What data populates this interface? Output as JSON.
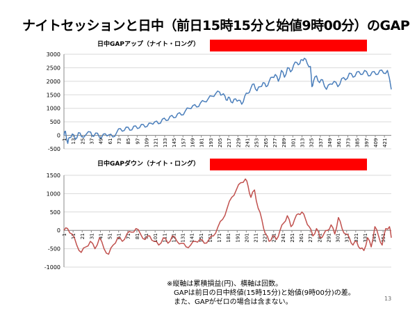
{
  "page": {
    "title": "ナイトセッションと日中（前日15時15分と始値9時00分）のGAP",
    "page_number": "13",
    "notes": [
      "※縦軸は累積損益(円)、横軸は回数。",
      "GAPは前日の日中終値(15時15分)と始値(9時00分)の差。",
      "また、GAPがゼロの場合は含まない。"
    ]
  },
  "colors": {
    "highlight_bar": "#ff0000",
    "up_line": "#4a7ebb",
    "down_line": "#c0504d",
    "grid": "#d9d9d9"
  },
  "chart_data": [
    {
      "type": "line",
      "title": "日中GAPアップ（ナイト・ロング）",
      "ylim": [
        -500,
        3000
      ],
      "yticks": [
        -500,
        0,
        500,
        1000,
        1500,
        2000,
        2500,
        3000
      ],
      "xlim": [
        1,
        430
      ],
      "xticks": [
        1,
        13,
        25,
        37,
        49,
        61,
        73,
        85,
        97,
        109,
        121,
        133,
        145,
        157,
        169,
        181,
        193,
        205,
        217,
        229,
        241,
        253,
        265,
        277,
        289,
        301,
        313,
        325,
        337,
        349,
        361,
        373,
        385,
        397,
        409,
        421
      ],
      "grid": true,
      "series": [
        {
          "x": [
            1,
            3,
            6,
            8,
            12,
            16,
            20,
            24,
            30,
            36,
            40,
            45,
            50,
            55,
            60,
            65,
            70,
            75,
            80,
            85,
            90,
            95,
            100,
            105,
            110,
            115,
            120,
            125,
            130,
            135,
            140,
            145,
            150,
            155,
            160,
            165,
            170,
            175,
            180,
            185,
            190,
            195,
            200,
            205,
            208,
            212,
            215,
            218,
            222,
            226,
            230,
            234,
            238,
            242,
            246,
            250,
            254,
            258,
            262,
            266,
            270,
            274,
            278,
            282,
            286,
            290,
            294,
            298,
            302,
            306,
            310,
            313,
            316,
            320,
            324,
            326,
            328,
            332,
            336,
            340,
            345,
            350,
            355,
            360,
            365,
            370,
            375,
            380,
            385,
            390,
            395,
            400,
            405,
            410,
            415,
            420,
            425,
            430
          ],
          "y": [
            0,
            150,
            -300,
            -80,
            50,
            -150,
            100,
            -50,
            30,
            120,
            -40,
            80,
            -100,
            60,
            20,
            -60,
            100,
            250,
            180,
            300,
            200,
            350,
            280,
            400,
            330,
            450,
            500,
            430,
            600,
            550,
            700,
            650,
            800,
            750,
            900,
            1000,
            1100,
            1050,
            1200,
            1250,
            1350,
            1450,
            1550,
            1600,
            1500,
            1450,
            1300,
            1400,
            1200,
            1350,
            1300,
            1150,
            1450,
            1550,
            1750,
            1900,
            1650,
            1800,
            1950,
            1800,
            2000,
            2150,
            2250,
            2000,
            2400,
            2150,
            2500,
            2350,
            2600,
            2700,
            2650,
            2800,
            2850,
            2650,
            2550,
            1800,
            2000,
            2200,
            1950,
            2050,
            1700,
            1900,
            2000,
            1800,
            2100,
            2050,
            2300,
            2150,
            2350,
            2250,
            2400,
            2200,
            2350,
            2250,
            2400,
            2300,
            2400,
            1700
          ]
        }
      ]
    },
    {
      "type": "line",
      "title": "日中GAPダウン（ナイト・ロング）",
      "ylim": [
        -1000,
        1500
      ],
      "yticks": [
        -1000,
        -500,
        0,
        500,
        1000,
        1500
      ],
      "xlim": [
        1,
        360
      ],
      "xticks": [
        1,
        11,
        21,
        31,
        41,
        51,
        61,
        71,
        81,
        91,
        101,
        111,
        121,
        131,
        141,
        151,
        161,
        171,
        181,
        191,
        201,
        211,
        221,
        231,
        241,
        251,
        261,
        271,
        281,
        291,
        301,
        311,
        321,
        331,
        341,
        351
      ],
      "grid": true,
      "series": [
        {
          "x": [
            1,
            5,
            10,
            15,
            20,
            25,
            30,
            35,
            40,
            45,
            50,
            55,
            60,
            65,
            70,
            75,
            80,
            85,
            90,
            95,
            100,
            105,
            110,
            115,
            120,
            125,
            130,
            135,
            140,
            145,
            150,
            155,
            160,
            165,
            170,
            175,
            180,
            185,
            190,
            195,
            200,
            203,
            206,
            210,
            214,
            218,
            222,
            226,
            230,
            234,
            238,
            242,
            246,
            250,
            254,
            258,
            262,
            266,
            270,
            274,
            278,
            282,
            286,
            290,
            294,
            298,
            302,
            306,
            310,
            314,
            318,
            322,
            326,
            330,
            334,
            338,
            342,
            346,
            350,
            354,
            358,
            360
          ],
          "y": [
            0,
            50,
            -100,
            -400,
            -600,
            -450,
            -300,
            -500,
            -200,
            -500,
            -650,
            -400,
            -200,
            -300,
            -100,
            -50,
            50,
            -100,
            -250,
            -150,
            -300,
            -400,
            -200,
            -350,
            -150,
            -300,
            -350,
            -450,
            -400,
            -300,
            -250,
            -350,
            -250,
            -150,
            100,
            300,
            600,
            900,
            1100,
            1300,
            1400,
            1200,
            900,
            1100,
            600,
            300,
            -100,
            -300,
            -150,
            -250,
            0,
            200,
            400,
            100,
            300,
            450,
            500,
            300,
            100,
            -150,
            50,
            -200,
            -100,
            0,
            150,
            -100,
            350,
            50,
            -100,
            -200,
            -400,
            -300,
            -500,
            -550,
            -200,
            -450,
            100,
            -150,
            -400,
            50,
            100,
            -200
          ]
        }
      ]
    }
  ]
}
